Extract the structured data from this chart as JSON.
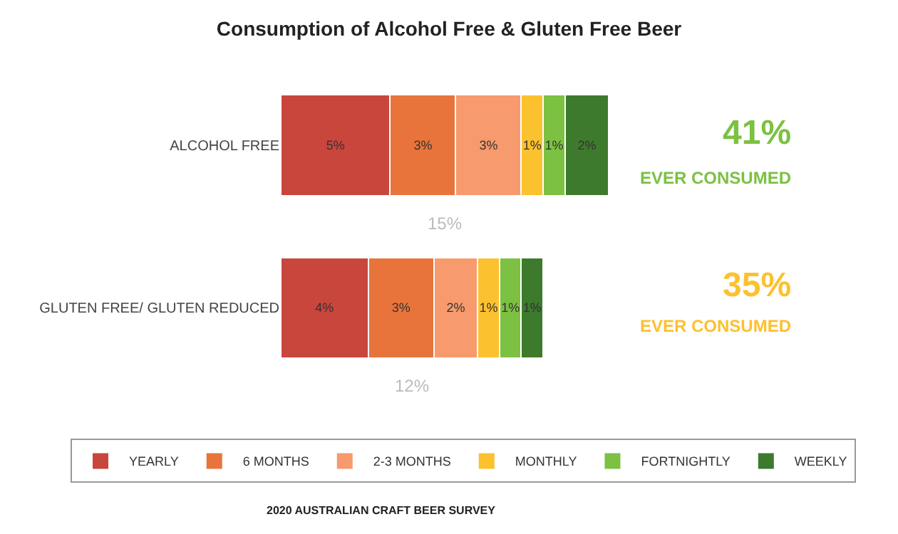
{
  "chart_data": {
    "type": "bar",
    "orientation": "horizontal",
    "stacked": true,
    "title": "Consumption of Alcohol Free & Gluten Free Beer",
    "categories": [
      "ALCOHOL FREE",
      "GLUTEN FREE/ GLUTEN REDUCED"
    ],
    "series": [
      {
        "name": "YEARLY",
        "color": "#c9463d",
        "values": [
          5,
          4
        ],
        "value_labels": [
          "5%",
          "4%"
        ]
      },
      {
        "name": "6 MONTHS",
        "color": "#e8743b",
        "values": [
          3,
          3
        ],
        "value_labels": [
          "3%",
          "3%"
        ]
      },
      {
        "name": "2-3 MONTHS",
        "color": "#f79a6e",
        "values": [
          3,
          2
        ],
        "value_labels": [
          "3%",
          "2%"
        ]
      },
      {
        "name": "MONTHLY",
        "color": "#fcc12e",
        "values": [
          1,
          1
        ],
        "value_labels": [
          "1%",
          "1%"
        ]
      },
      {
        "name": "FORTNIGHTLY",
        "color": "#7cc142",
        "values": [
          1,
          1
        ],
        "value_labels": [
          "1%",
          "1%"
        ]
      },
      {
        "name": "WEEKLY",
        "color": "#3d7a2d",
        "values": [
          2,
          1
        ],
        "value_labels": [
          "2%",
          "1%"
        ]
      }
    ],
    "totals": [
      "15%",
      "12%"
    ],
    "annotations": [
      "41%",
      "EVER CONSUMED",
      "35%",
      "EVER CONSUMED",
      "2020 AUSTRALIAN CRAFT BEER SURVEY"
    ],
    "legend": "bottom"
  }
}
